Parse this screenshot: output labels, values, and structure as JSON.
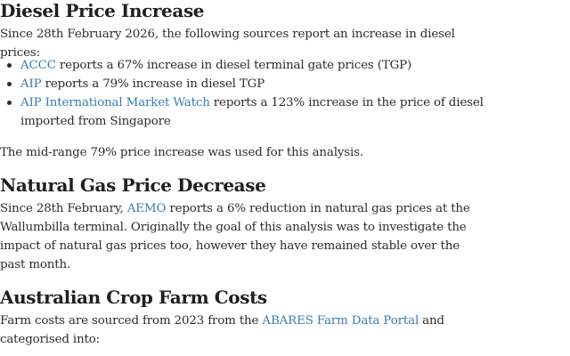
{
  "diesel": {
    "heading": "Diesel Price Increase",
    "intro": "Since 28th February 2026, the following sources report an increase in diesel prices:",
    "items": [
      {
        "link": "ACCC",
        "text": " reports a 67% increase in diesel terminal gate prices (TGP)"
      },
      {
        "link": "AIP",
        "text": " reports a 79% increase in diesel TGP"
      },
      {
        "link": "AIP International Market Watch",
        "text": " reports a 123% increase in the price of diesel imported from Singapore"
      }
    ],
    "conclusion": "The mid-range 79% price increase was used for this analysis."
  },
  "gas": {
    "heading": "Natural Gas Price Decrease",
    "before_link": "Since 28th February, ",
    "link": "AEMO",
    "after_link": " reports a 6% reduction in natural gas prices at the Wallumbilla terminal. Originally the goal of this analysis was to investigate the impact of natural gas prices too, however they have remained stable over the past month."
  },
  "farm": {
    "heading": "Australian Crop Farm Costs",
    "before_link": "Farm costs are sourced from 2023 from the ",
    "link": "ABARES Farm Data Portal",
    "after_link": " and categorised into:"
  }
}
